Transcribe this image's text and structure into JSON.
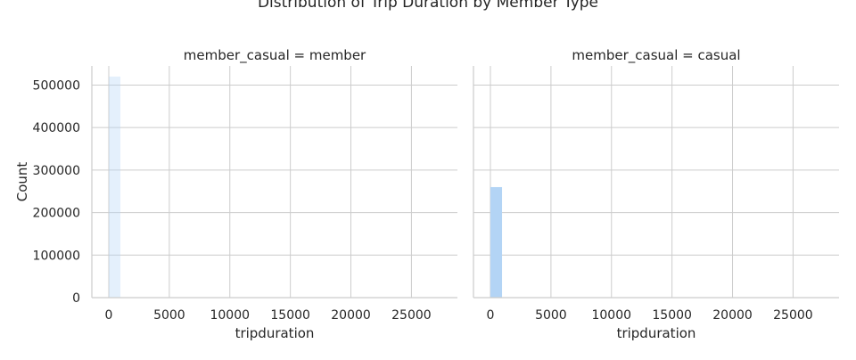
{
  "figure": {
    "title": "Distribution of Trip Duration by Member Type"
  },
  "colors": {
    "background": "#ffffff",
    "grid": "#cccccc",
    "spine": "#cccccc",
    "member_bar": "#b3d4f5",
    "casual_bar": "#b3d4f5",
    "text": "#262626"
  },
  "chart_data": [
    {
      "type": "bar",
      "title": "member_casual = member",
      "xlabel": "tripduration",
      "ylabel": "Count",
      "xlim": [
        -1400,
        28800
      ],
      "ylim": [
        0,
        545000
      ],
      "xticks": [
        0,
        5000,
        10000,
        15000,
        20000,
        25000
      ],
      "yticks": [
        0,
        100000,
        200000,
        300000,
        400000,
        500000
      ],
      "grid": true,
      "bins": [
        {
          "x0": 0,
          "x1": 960,
          "count": 520000
        }
      ]
    },
    {
      "type": "bar",
      "title": "member_casual = casual",
      "xlabel": "tripduration",
      "ylabel": "",
      "xlim": [
        -1400,
        28800
      ],
      "ylim": [
        0,
        545000
      ],
      "xticks": [
        0,
        5000,
        10000,
        15000,
        20000,
        25000
      ],
      "yticks": [
        0,
        100000,
        200000,
        300000,
        400000,
        500000
      ],
      "grid": true,
      "bins": [
        {
          "x0": 0,
          "x1": 960,
          "count": 260000
        }
      ]
    }
  ]
}
